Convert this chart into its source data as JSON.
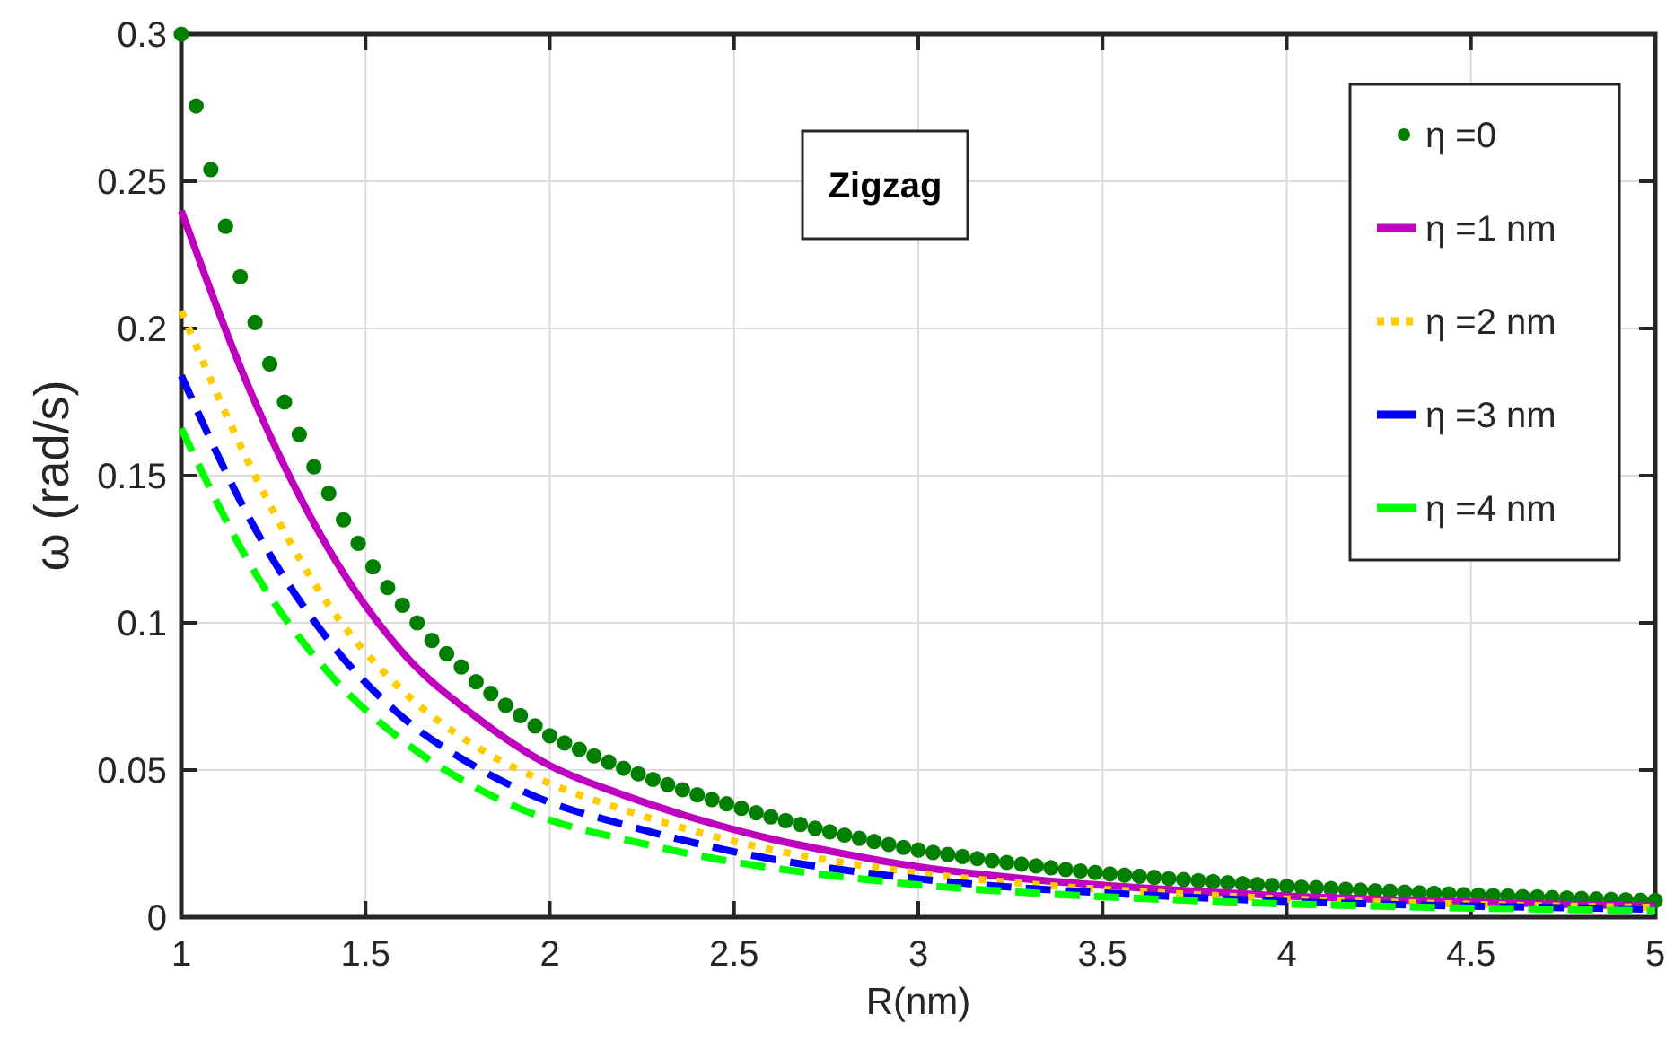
{
  "chart_data": {
    "type": "line",
    "xlabel": "R(nm)",
    "ylabel": "ω (rad/s)",
    "annotations": [
      "Zigzag"
    ],
    "xlim": [
      1,
      5
    ],
    "ylim": [
      0,
      0.3
    ],
    "xticks": [
      1,
      1.5,
      2,
      2.5,
      3,
      3.5,
      4,
      4.5,
      5
    ],
    "yticks": [
      0,
      0.05,
      0.1,
      0.15,
      0.2,
      0.25,
      0.3
    ],
    "grid": true,
    "legend": "top right",
    "series": [
      {
        "name": "η =0",
        "type": "scatter",
        "marker": "circle",
        "color": "#007f00",
        "x": [
          1.0,
          1.04,
          1.08,
          1.12,
          1.16,
          1.2,
          1.24,
          1.28,
          1.32,
          1.36,
          1.4,
          1.44,
          1.48,
          1.52,
          1.56,
          1.6,
          1.64,
          1.68,
          1.72,
          1.76,
          1.8,
          1.84,
          1.88,
          1.92,
          1.96,
          2.0,
          2.04,
          2.08,
          2.12,
          2.16,
          2.2,
          2.24,
          2.28,
          2.32,
          2.36,
          2.4,
          2.44,
          2.48,
          2.52,
          2.56,
          2.6,
          2.64,
          2.68,
          2.72,
          2.76,
          2.8,
          2.84,
          2.88,
          2.92,
          2.96,
          3.0,
          3.04,
          3.08,
          3.12,
          3.16,
          3.2,
          3.24,
          3.28,
          3.32,
          3.36,
          3.4,
          3.44,
          3.48,
          3.52,
          3.56,
          3.6,
          3.64,
          3.68,
          3.72,
          3.76,
          3.8,
          3.84,
          3.88,
          3.92,
          3.96,
          4.0,
          4.04,
          4.08,
          4.12,
          4.16,
          4.2,
          4.24,
          4.28,
          4.32,
          4.36,
          4.4,
          4.44,
          4.48,
          4.52,
          4.56,
          4.6,
          4.64,
          4.68,
          4.72,
          4.76,
          4.8,
          4.84,
          4.88,
          4.92,
          4.96,
          5.0
        ],
        "values": [
          0.3,
          0.2756,
          0.254,
          0.2347,
          0.2176,
          0.202,
          0.188,
          0.175,
          0.164,
          0.153,
          0.144,
          0.135,
          0.127,
          0.119,
          0.112,
          0.106,
          0.1,
          0.094,
          0.0895,
          0.085,
          0.08,
          0.076,
          0.072,
          0.0685,
          0.065,
          0.0616,
          0.0592,
          0.057,
          0.0548,
          0.0527,
          0.0506,
          0.0487,
          0.0468,
          0.045,
          0.0433,
          0.0416,
          0.04,
          0.0385,
          0.037,
          0.0355,
          0.0341,
          0.0328,
          0.0315,
          0.0302,
          0.029,
          0.0279,
          0.0268,
          0.0257,
          0.0247,
          0.0237,
          0.0228,
          0.022,
          0.0213,
          0.0206,
          0.0199,
          0.0192,
          0.0186,
          0.018,
          0.0174,
          0.0168,
          0.0162,
          0.0157,
          0.0152,
          0.0147,
          0.0143,
          0.0139,
          0.0135,
          0.0131,
          0.0128,
          0.0124,
          0.0121,
          0.0117,
          0.0114,
          0.0111,
          0.0108,
          0.0105,
          0.0102,
          0.01,
          0.0097,
          0.0095,
          0.0092,
          0.009,
          0.0088,
          0.0085,
          0.0083,
          0.0081,
          0.0079,
          0.0077,
          0.0075,
          0.0074,
          0.0072,
          0.007,
          0.0069,
          0.0067,
          0.0065,
          0.0064,
          0.0062,
          0.0061,
          0.0059,
          0.0058,
          0.0057
        ]
      },
      {
        "name": "η =1 nm",
        "line_style": "solid",
        "color": "#bf00bf",
        "x": [
          1.0,
          1.2,
          1.4,
          1.6,
          1.8,
          2.0,
          2.2,
          2.4,
          2.6,
          2.8,
          3.0,
          3.2,
          3.4,
          3.6,
          3.8,
          4.0,
          4.2,
          4.4,
          4.6,
          4.8,
          5.0
        ],
        "values": [
          0.24,
          0.175,
          0.125,
          0.09,
          0.068,
          0.0515,
          0.0415,
          0.0333,
          0.0266,
          0.0215,
          0.0171,
          0.0142,
          0.0118,
          0.01,
          0.0085,
          0.0072,
          0.0063,
          0.0054,
          0.0048,
          0.0042,
          0.0037
        ]
      },
      {
        "name": "η =2 nm",
        "line_style": "dotted",
        "color": "#ffcc00",
        "x": [
          1.0,
          1.2,
          1.4,
          1.6,
          1.8,
          2.0,
          2.2,
          2.4,
          2.6,
          2.8,
          3.0,
          3.2,
          3.4,
          3.6,
          3.8,
          4.0,
          4.2,
          4.4,
          4.6,
          4.8,
          5.0
        ],
        "values": [
          0.206,
          0.15,
          0.106,
          0.077,
          0.058,
          0.0454,
          0.0365,
          0.029,
          0.023,
          0.0185,
          0.015,
          0.0124,
          0.0103,
          0.0087,
          0.0074,
          0.0062,
          0.0054,
          0.0047,
          0.0041,
          0.0037,
          0.0033
        ]
      },
      {
        "name": "η =3 nm",
        "line_style": "dashed",
        "color": "#0000ff",
        "x": [
          1.0,
          1.2,
          1.4,
          1.6,
          1.8,
          2.0,
          2.2,
          2.4,
          2.6,
          2.8,
          3.0,
          3.2,
          3.4,
          3.6,
          3.8,
          4.0,
          4.2,
          4.4,
          4.6,
          4.8,
          5.0
        ],
        "values": [
          0.184,
          0.132,
          0.094,
          0.068,
          0.051,
          0.039,
          0.0315,
          0.025,
          0.0198,
          0.016,
          0.013,
          0.0107,
          0.009,
          0.0076,
          0.0064,
          0.0053,
          0.0046,
          0.004,
          0.0035,
          0.0031,
          0.0027
        ]
      },
      {
        "name": "η =4 nm",
        "line_style": "dashed",
        "color": "#00ff00",
        "x": [
          1.0,
          1.2,
          1.4,
          1.6,
          1.8,
          2.0,
          2.2,
          2.4,
          2.6,
          2.8,
          3.0,
          3.2,
          3.4,
          3.6,
          3.8,
          4.0,
          4.2,
          4.4,
          4.6,
          4.8,
          5.0
        ],
        "values": [
          0.166,
          0.117,
          0.083,
          0.06,
          0.044,
          0.033,
          0.0265,
          0.021,
          0.0168,
          0.0136,
          0.011,
          0.0091,
          0.0076,
          0.0064,
          0.0054,
          0.0045,
          0.0039,
          0.0033,
          0.0029,
          0.0025,
          0.0021
        ]
      }
    ]
  }
}
